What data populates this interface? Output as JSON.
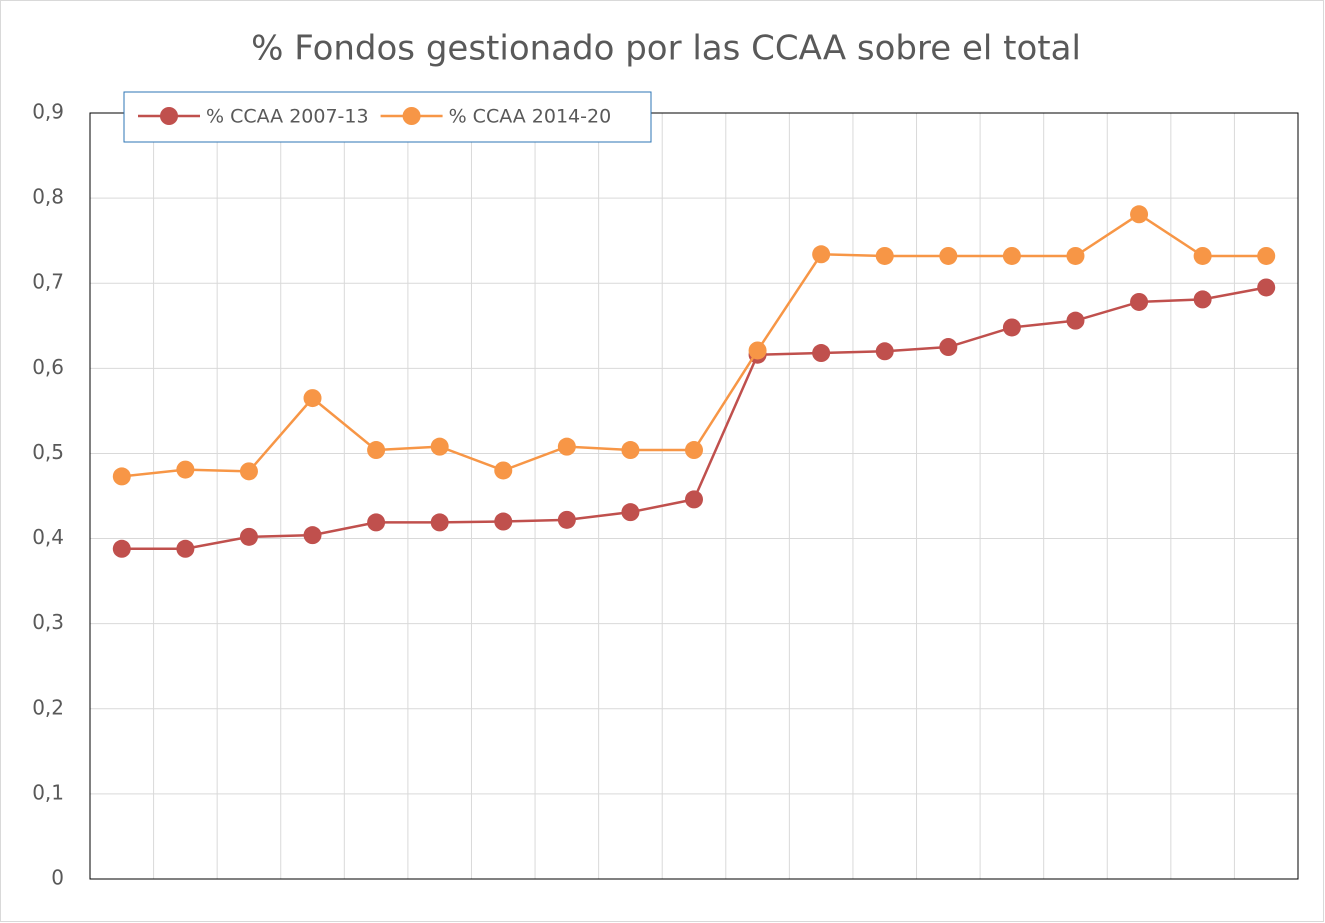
{
  "chart_data": {
    "type": "line",
    "title": "% Fondos gestionado por las CCAA sobre el total",
    "categories": [
      null,
      null,
      null,
      null,
      null,
      null,
      null,
      null,
      null,
      null,
      null,
      null,
      null,
      null,
      null,
      null,
      null,
      null,
      null
    ],
    "series": [
      {
        "name": "% CCAA 2007-13",
        "color": "#c0504d",
        "values": [
          0.388,
          0.388,
          0.402,
          0.404,
          0.419,
          0.419,
          0.42,
          0.422,
          0.431,
          0.446,
          0.616,
          0.618,
          0.62,
          0.625,
          0.648,
          0.656,
          0.678,
          0.681,
          0.695
        ]
      },
      {
        "name": "% CCAA 2014-20",
        "color": "#f79646",
        "values": [
          0.473,
          0.481,
          0.479,
          0.565,
          0.504,
          0.508,
          0.48,
          0.508,
          0.504,
          0.504,
          0.621,
          0.734,
          0.732,
          0.732,
          0.732,
          0.732,
          0.781,
          0.732,
          0.732
        ]
      }
    ],
    "ylim": [
      0,
      0.9
    ],
    "yticks": [
      0,
      {
        "value": 0.1,
        "label": "0,1"
      },
      {
        "value": 0.2,
        "label": "0,2"
      },
      {
        "value": 0.3,
        "label": "0,3"
      },
      {
        "value": 0.4,
        "label": "0,4"
      },
      {
        "value": 0.5,
        "label": "0,5"
      },
      {
        "value": 0.6,
        "label": "0,6"
      },
      {
        "value": 0.7,
        "label": "0,7"
      },
      {
        "value": 0.8,
        "label": "0,8"
      },
      {
        "value": 0.9,
        "label": "0,9"
      }
    ],
    "grid": true,
    "legend": "top-left"
  }
}
